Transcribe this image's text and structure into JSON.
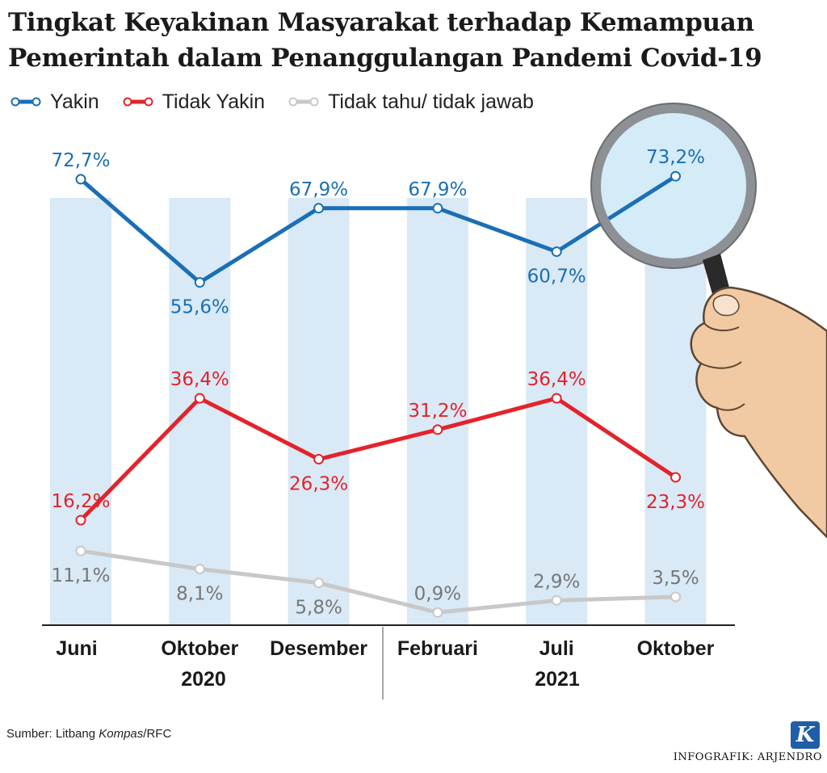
{
  "title_line1": "Tingkat Keyakinan Masyarakat terhadap Kemampuan",
  "title_line2": "Pemerintah dalam Penanggulangan Pandemi Covid-19",
  "legend": [
    {
      "label": "Yakin",
      "color": "#1a6fb5"
    },
    {
      "label": "Tidak Yakin",
      "color": "#e3232b"
    },
    {
      "label": "Tidak tahu/ tidak jawab",
      "color": "#c8c8c8"
    }
  ],
  "chart_data": {
    "type": "line",
    "categories": [
      "Juni",
      "Oktober",
      "Desember",
      "Februari",
      "Juli",
      "Oktober"
    ],
    "year_labels": [
      {
        "text": "2020"
      },
      {
        "text": "2021"
      }
    ],
    "series": [
      {
        "name": "Yakin",
        "color": "#1a6fb5",
        "label_color": "#1a6fb5",
        "values": [
          72.7,
          55.6,
          67.9,
          67.9,
          60.7,
          73.2
        ],
        "labels": [
          "72,7%",
          "55,6%",
          "67,9%",
          "67,9%",
          "60,7%",
          "73,2%"
        ],
        "label_pos": [
          "above",
          "below",
          "above",
          "above",
          "below",
          "above"
        ]
      },
      {
        "name": "Tidak Yakin",
        "color": "#e3232b",
        "label_color": "#e3232b",
        "values": [
          16.2,
          36.4,
          26.3,
          31.2,
          36.4,
          23.3
        ],
        "labels": [
          "16,2%",
          "36,4%",
          "26,3%",
          "31,2%",
          "36,4%",
          "23,3%"
        ],
        "label_pos": [
          "above",
          "above",
          "below",
          "above",
          "above",
          "below"
        ]
      },
      {
        "name": "Tidak tahu/ tidak jawab",
        "color": "#c8c8c8",
        "label_color": "#777777",
        "values": [
          11.1,
          8.1,
          5.8,
          0.9,
          2.9,
          3.5
        ],
        "labels": [
          "11,1%",
          "8,1%",
          "5,8%",
          "0,9%",
          "2,9%",
          "3,5%"
        ],
        "label_pos": [
          "below",
          "below",
          "below",
          "above",
          "above",
          "above"
        ]
      }
    ],
    "legend_position": "top-left"
  },
  "source_prefix": "Sumber: Litbang ",
  "source_italic": "Kompas",
  "source_suffix": "/RFC",
  "credit": "INFOGRAFIK: ARJENDRO",
  "logo_letter": "K"
}
